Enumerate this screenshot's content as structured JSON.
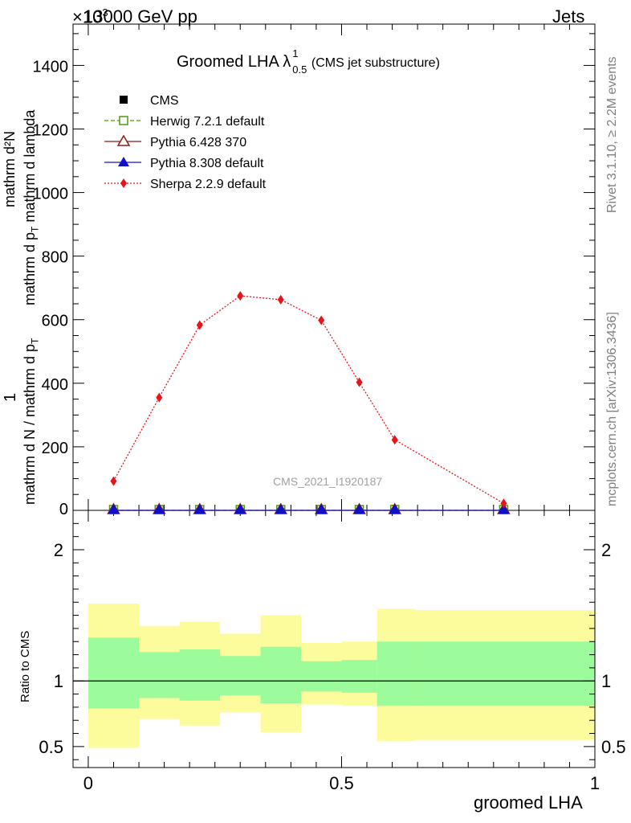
{
  "header": {
    "left": "13000 GeV pp",
    "right": "Jets",
    "exponent": "×10"
  },
  "side_labels": {
    "rivet": "Rivet 3.1.10, ≥ 2.2M events",
    "mcplots": "mcplots.cern.ch [arXiv:1306.3436]"
  },
  "chart_data": [
    {
      "type": "line",
      "title": "Groomed LHA λ",
      "title_sup": "1",
      "title_sub": "0.5",
      "title_suffix": "(CMS jet substructure)",
      "watermark": "CMS_2021_I1920187",
      "ylabel_numerator_1": "1",
      "ylabel_denominator_1": "mathrm d N / mathrm d p",
      "ylabel_denominator_1_sub": "T",
      "ylabel_numerator_2": "mathrm d²N",
      "ylabel_denominator_2": "mathrm d p",
      "ylabel_denominator_2_sub": "T",
      "ylabel_denominator_2_tail": " mathrm d lambda",
      "xlim": [
        -0.03,
        1.0
      ],
      "ylim": [
        0,
        1530
      ],
      "y_ticks": [
        0,
        200,
        400,
        600,
        800,
        1000,
        1200,
        1400
      ],
      "y_tick_labels": [
        "0",
        "200",
        "400",
        "600",
        "800",
        "1000",
        "1200",
        "1400"
      ],
      "x": [
        0.05,
        0.14,
        0.22,
        0.3,
        0.38,
        0.46,
        0.535,
        0.605,
        0.82
      ],
      "legend_position": "top-left",
      "series": [
        {
          "name": "CMS",
          "color": "#000000",
          "marker": "square-filled",
          "line": "none",
          "values": [
            0,
            0,
            0,
            0,
            0,
            0,
            0,
            0,
            0
          ]
        },
        {
          "name": "Herwig 7.2.1 default",
          "color": "#4a9a14",
          "marker": "square-open",
          "line": "dashed",
          "values": [
            0,
            0,
            0,
            0,
            0,
            0,
            0,
            0,
            0
          ]
        },
        {
          "name": "Pythia 6.428 370",
          "color": "#8b1a1a",
          "marker": "triangle-open",
          "line": "solid",
          "values": [
            0,
            0,
            0,
            0,
            0,
            0,
            0,
            0,
            0
          ]
        },
        {
          "name": "Pythia 8.308 default",
          "color": "#1010c8",
          "marker": "triangle-filled",
          "line": "solid",
          "values": [
            0,
            0,
            0,
            0,
            0,
            0,
            0,
            0,
            0
          ]
        },
        {
          "name": "Sherpa 2.2.9 default",
          "color": "#e8141c",
          "marker": "diamond-filled",
          "line": "dotted",
          "values": [
            92,
            355,
            583,
            675,
            663,
            598,
            403,
            222,
            22
          ],
          "errors": [
            8,
            10,
            12,
            12,
            12,
            12,
            11,
            8,
            6
          ]
        }
      ]
    },
    {
      "type": "area",
      "ylabel": "Ratio to CMS",
      "xlabel": "groomed LHA",
      "xlim": [
        -0.03,
        1.0
      ],
      "ylim": [
        0.34,
        2.3
      ],
      "x_ticks": [
        0,
        0.5,
        1
      ],
      "x_tick_labels": [
        "0",
        "0.5",
        "1"
      ],
      "y_ticks": [
        0.5,
        1,
        2
      ],
      "y_tick_labels": [
        "0.5",
        "1",
        "2"
      ],
      "reference_line": 1,
      "bins": [
        {
          "lo": 0.0,
          "hi": 0.1,
          "inner": [
            0.79,
            1.33
          ],
          "outer": [
            0.49,
            1.59
          ]
        },
        {
          "lo": 0.1,
          "hi": 0.18,
          "inner": [
            0.87,
            1.22
          ],
          "outer": [
            0.71,
            1.42
          ]
        },
        {
          "lo": 0.18,
          "hi": 0.26,
          "inner": [
            0.85,
            1.24
          ],
          "outer": [
            0.66,
            1.45
          ]
        },
        {
          "lo": 0.26,
          "hi": 0.34,
          "inner": [
            0.89,
            1.19
          ],
          "outer": [
            0.76,
            1.36
          ]
        },
        {
          "lo": 0.34,
          "hi": 0.42,
          "inner": [
            0.83,
            1.26
          ],
          "outer": [
            0.61,
            1.5
          ]
        },
        {
          "lo": 0.42,
          "hi": 0.5,
          "inner": [
            0.92,
            1.15
          ],
          "outer": [
            0.82,
            1.29
          ]
        },
        {
          "lo": 0.5,
          "hi": 0.57,
          "inner": [
            0.91,
            1.16
          ],
          "outer": [
            0.81,
            1.3
          ]
        },
        {
          "lo": 0.57,
          "hi": 0.645,
          "inner": [
            0.81,
            1.3
          ],
          "outer": [
            0.54,
            1.55
          ]
        },
        {
          "lo": 0.645,
          "hi": 1.0,
          "inner": [
            0.81,
            1.3
          ],
          "outer": [
            0.55,
            1.54
          ]
        }
      ],
      "band_colors": {
        "inner": "#9cfc9c",
        "outer": "#fcfc9c"
      }
    }
  ]
}
